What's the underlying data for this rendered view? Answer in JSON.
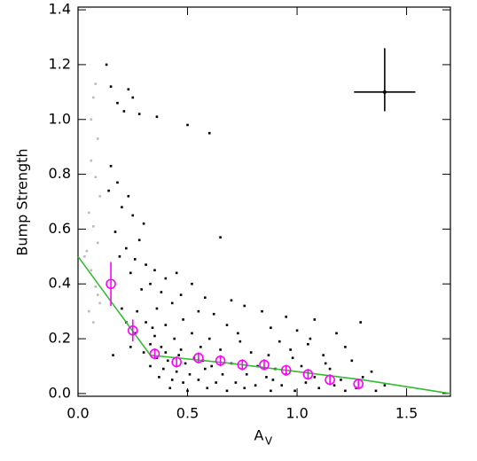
{
  "chart_data": {
    "type": "scatter",
    "y_label": "Bump Strength",
    "x_label": {
      "text": "A",
      "subscript": "V"
    },
    "xlim": [
      0,
      1.7
    ],
    "ylim": [
      -0.01,
      1.41
    ],
    "xticks": [
      {
        "value": 0,
        "label": "0.0"
      },
      {
        "value": 0.5,
        "label": "0.5"
      },
      {
        "value": 1,
        "label": "1.0"
      },
      {
        "value": 1.5,
        "label": "1.5"
      }
    ],
    "yticks": [
      {
        "value": 0,
        "label": "0.0"
      },
      {
        "value": 0.2,
        "label": "0.2"
      },
      {
        "value": 0.4,
        "label": "0.4"
      },
      {
        "value": 0.6,
        "label": "0.6"
      },
      {
        "value": 0.8,
        "label": "0.8"
      },
      {
        "value": 1,
        "label": "1.0"
      },
      {
        "value": 1.2,
        "label": "1.2"
      },
      {
        "value": 1.4,
        "label": "1.4"
      }
    ],
    "series": [
      {
        "color": "#bbbbbb",
        "marker": "dot",
        "x": [
          0.08,
          0.07,
          0.06,
          0.09,
          0.06,
          0.08,
          0.1,
          0.05,
          0.07,
          0.04,
          0.03,
          0.09,
          0.06,
          0.08,
          0.1,
          0.05,
          0.07,
          0.09
        ],
        "values": [
          1.13,
          1.08,
          1.0,
          0.93,
          0.85,
          0.79,
          0.72,
          0.66,
          0.61,
          0.52,
          0.5,
          0.55,
          0.45,
          0.39,
          0.33,
          0.3,
          0.26,
          0.36
        ]
      },
      {
        "color": "#000000",
        "marker": "dot",
        "x": [
          0.13,
          0.15,
          0.23,
          0.25,
          0.18,
          0.21,
          0.28,
          0.36,
          0.5,
          0.6,
          0.15,
          0.18,
          0.14,
          0.23,
          0.2,
          0.25,
          0.3,
          0.17,
          0.65,
          0.28,
          0.22,
          0.19,
          0.26,
          0.31,
          0.35,
          0.24,
          0.4,
          0.45,
          0.52,
          0.33,
          0.29,
          0.38,
          0.47,
          0.58,
          0.7,
          0.76,
          0.43,
          0.36,
          0.27,
          0.55,
          0.62,
          0.84,
          0.95,
          1.08,
          1.29,
          0.48,
          0.31,
          0.4,
          0.68,
          0.88,
          1.0,
          1.18,
          0.52,
          0.35,
          0.44,
          0.6,
          0.74,
          0.92,
          1.05,
          1.22,
          0.33,
          0.38,
          0.47,
          0.56,
          0.65,
          0.79,
          0.87,
          0.98,
          1.12,
          1.25,
          0.3,
          0.36,
          0.41,
          0.49,
          0.53,
          0.61,
          0.7,
          0.82,
          0.9,
          1.02,
          1.15,
          1.34,
          0.33,
          0.39,
          0.45,
          0.51,
          0.58,
          0.66,
          0.77,
          0.86,
          0.95,
          1.08,
          1.2,
          1.3,
          0.37,
          0.43,
          0.48,
          0.55,
          0.63,
          0.72,
          0.81,
          0.93,
          1.04,
          1.17,
          1.27,
          1.4,
          0.42,
          0.5,
          0.59,
          0.68,
          0.76,
          0.88,
          0.99,
          1.1,
          1.22,
          1.36,
          0.46,
          0.57,
          0.4,
          0.34,
          0.26,
          0.22,
          0.2,
          0.16,
          0.24,
          0.73,
          1.06,
          0.89,
          0.97,
          1.13
        ],
        "values": [
          1.2,
          1.12,
          1.11,
          1.08,
          1.06,
          1.03,
          1.02,
          1.01,
          0.98,
          0.95,
          0.83,
          0.77,
          0.74,
          0.72,
          0.68,
          0.65,
          0.62,
          0.59,
          0.57,
          0.56,
          0.53,
          0.5,
          0.49,
          0.47,
          0.45,
          0.44,
          0.42,
          0.44,
          0.4,
          0.4,
          0.38,
          0.37,
          0.36,
          0.35,
          0.34,
          0.32,
          0.33,
          0.31,
          0.3,
          0.3,
          0.29,
          0.3,
          0.28,
          0.27,
          0.26,
          0.27,
          0.26,
          0.25,
          0.25,
          0.24,
          0.23,
          0.22,
          0.22,
          0.21,
          0.2,
          0.2,
          0.19,
          0.19,
          0.18,
          0.17,
          0.18,
          0.17,
          0.16,
          0.17,
          0.16,
          0.15,
          0.14,
          0.13,
          0.14,
          0.12,
          0.15,
          0.13,
          0.12,
          0.11,
          0.13,
          0.1,
          0.11,
          0.1,
          0.09,
          0.1,
          0.09,
          0.08,
          0.1,
          0.09,
          0.08,
          0.07,
          0.09,
          0.07,
          0.07,
          0.06,
          0.07,
          0.06,
          0.05,
          0.06,
          0.06,
          0.05,
          0.04,
          0.05,
          0.04,
          0.04,
          0.03,
          0.03,
          0.04,
          0.03,
          0.02,
          0.03,
          0.02,
          0.01,
          0.02,
          0.01,
          0.02,
          0.01,
          0.01,
          0.02,
          0.01,
          0.01,
          0.14,
          0.12,
          0.15,
          0.24,
          0.22,
          0.26,
          0.31,
          0.14,
          0.17,
          0.22,
          0.2,
          0.05,
          0.16,
          0.11
        ]
      },
      {
        "color": "#ff00ff",
        "marker": "circle",
        "x": [
          0.15,
          0.25,
          0.35,
          0.45,
          0.55,
          0.65,
          0.75,
          0.85,
          0.95,
          1.05,
          1.15,
          1.28
        ],
        "values": [
          0.4,
          0.23,
          0.145,
          0.115,
          0.13,
          0.12,
          0.105,
          0.105,
          0.085,
          0.07,
          0.05,
          0.035
        ],
        "errors": [
          0.08,
          0.04,
          0.02,
          0.02,
          0.02,
          0.02,
          0.02,
          0.02,
          0.02,
          0.02,
          0.02,
          0.015
        ]
      }
    ],
    "fit_line": {
      "color": "#33bb33",
      "x": [
        0,
        0.33,
        0.7,
        1.0,
        1.3,
        1.7
      ],
      "values": [
        0.5,
        0.14,
        0.11,
        0.08,
        0.05,
        0.0
      ]
    },
    "error_cross": {
      "x": 1.4,
      "y": 1.1,
      "xerr": 0.14,
      "y_low": 1.03,
      "y_high": 1.26
    }
  }
}
